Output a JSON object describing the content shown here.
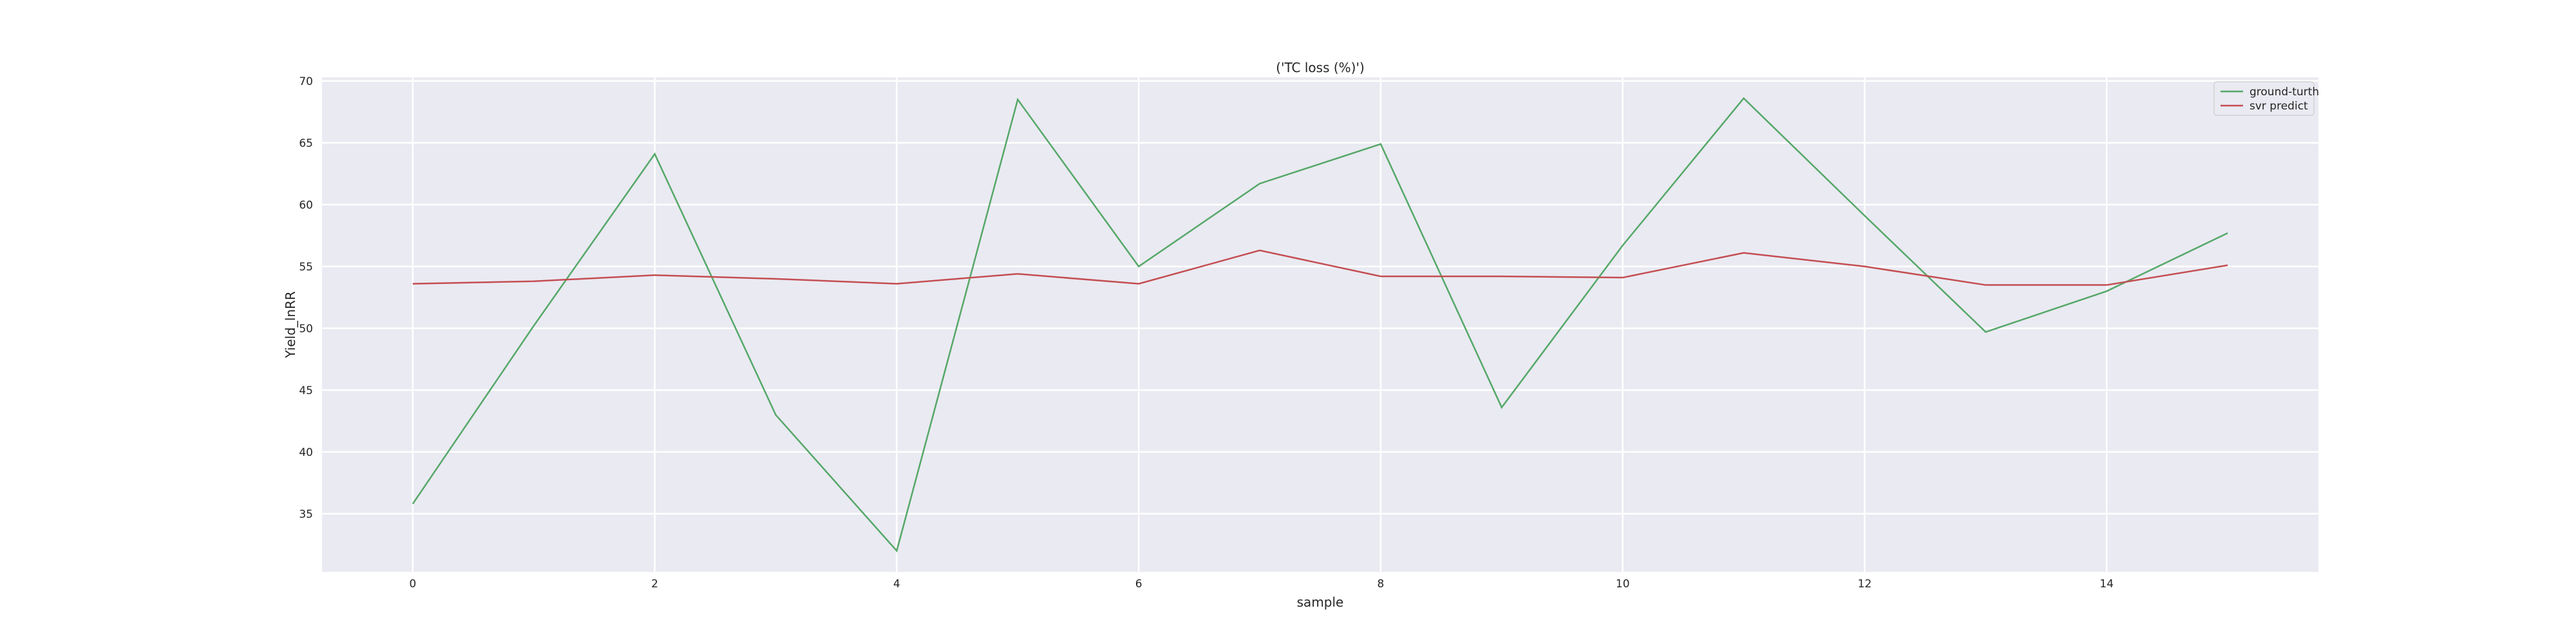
{
  "chart_data": {
    "type": "line",
    "title": "('TC loss (%)')",
    "xlabel": "sample",
    "ylabel": "Yield_lnRR",
    "x": [
      0,
      1,
      2,
      3,
      4,
      5,
      6,
      7,
      8,
      9,
      10,
      11,
      12,
      13,
      14,
      15
    ],
    "xlim": [
      -0.75,
      15.75
    ],
    "ylim": [
      30.3,
      70.3
    ],
    "xticks": [
      0,
      2,
      4,
      6,
      8,
      10,
      12,
      14
    ],
    "yticks": [
      35,
      40,
      45,
      50,
      55,
      60,
      65,
      70
    ],
    "grid": true,
    "legend_position": "top-right",
    "series": [
      {
        "name": "ground-turth",
        "color": "#55a868",
        "values": [
          35.8,
          50.2,
          64.1,
          43.0,
          32.0,
          68.5,
          55.0,
          61.7,
          64.9,
          43.6,
          56.7,
          68.6,
          59.1,
          49.7,
          53.0,
          57.7
        ]
      },
      {
        "name": "svr predict",
        "color": "#c44e52",
        "values": [
          53.6,
          53.8,
          54.3,
          54.0,
          53.6,
          54.4,
          53.6,
          56.3,
          54.2,
          54.2,
          54.1,
          56.1,
          55.0,
          53.5,
          53.5,
          55.1
        ]
      }
    ]
  }
}
